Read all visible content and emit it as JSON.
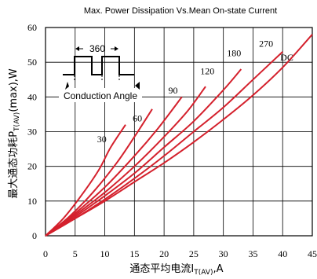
{
  "chart_data": {
    "type": "line",
    "title": "Max. Power Dissipation Vs.Mean On-state Current",
    "xlabel_main": "通态平均电流I",
    "xlabel_sub": "T(AV)",
    "xlabel_tail": ",A",
    "ylabel_main": "最大通态功耗P",
    "ylabel_sub": "T(AV)",
    "ylabel_tail": "(max),W",
    "xlim": [
      0,
      45
    ],
    "ylim": [
      0,
      60
    ],
    "xticks": [
      0,
      5,
      10,
      15,
      20,
      25,
      30,
      35,
      40,
      45
    ],
    "yticks": [
      0,
      10,
      20,
      30,
      40,
      50,
      60
    ],
    "grid": true,
    "line_color": "#d4202c",
    "series": [
      {
        "name": "30",
        "x": [
          0,
          3,
          6,
          9,
          11,
          13.5
        ],
        "y": [
          0,
          5,
          11.5,
          19,
          25.5,
          32
        ]
      },
      {
        "name": "60",
        "x": [
          0,
          4,
          8,
          12,
          15,
          18
        ],
        "y": [
          0,
          5.5,
          12.5,
          21,
          28.5,
          36.5
        ]
      },
      {
        "name": "90",
        "x": [
          0,
          5,
          10,
          15,
          19,
          23
        ],
        "y": [
          0,
          6.5,
          14,
          23,
          31,
          40
        ]
      },
      {
        "name": "120",
        "x": [
          0,
          5,
          10,
          15,
          20,
          24,
          27
        ],
        "y": [
          0,
          6,
          12.5,
          20,
          28.5,
          36,
          43
        ]
      },
      {
        "name": "180",
        "x": [
          0,
          5,
          10,
          15,
          20,
          25,
          30,
          33
        ],
        "y": [
          0,
          5.5,
          11.5,
          18,
          25.5,
          33,
          42,
          48
        ]
      },
      {
        "name": "270",
        "x": [
          0,
          5,
          10,
          15,
          20,
          25,
          30,
          35,
          40
        ],
        "y": [
          0,
          5,
          10.5,
          16.5,
          23,
          30,
          37,
          45,
          53
        ]
      },
      {
        "name": "DC",
        "x": [
          0,
          5,
          10,
          15,
          20,
          25,
          30,
          35,
          40,
          45
        ],
        "y": [
          0,
          5,
          10,
          15.5,
          21,
          27,
          33.5,
          40.5,
          48.5,
          58
        ]
      }
    ],
    "curve_labels": [
      {
        "text": "30",
        "x": 9.5,
        "y": 27
      },
      {
        "text": "60",
        "x": 15.5,
        "y": 33
      },
      {
        "text": "90",
        "x": 21.5,
        "y": 41
      },
      {
        "text": "120",
        "x": 27.3,
        "y": 46.5
      },
      {
        "text": "180",
        "x": 31.8,
        "y": 51.7
      },
      {
        "text": "270",
        "x": 37.2,
        "y": 54.5
      },
      {
        "text": "DC",
        "x": 40.7,
        "y": 50.5
      }
    ],
    "inset": {
      "angle_label": "360",
      "caption": "Conduction Angle"
    }
  }
}
